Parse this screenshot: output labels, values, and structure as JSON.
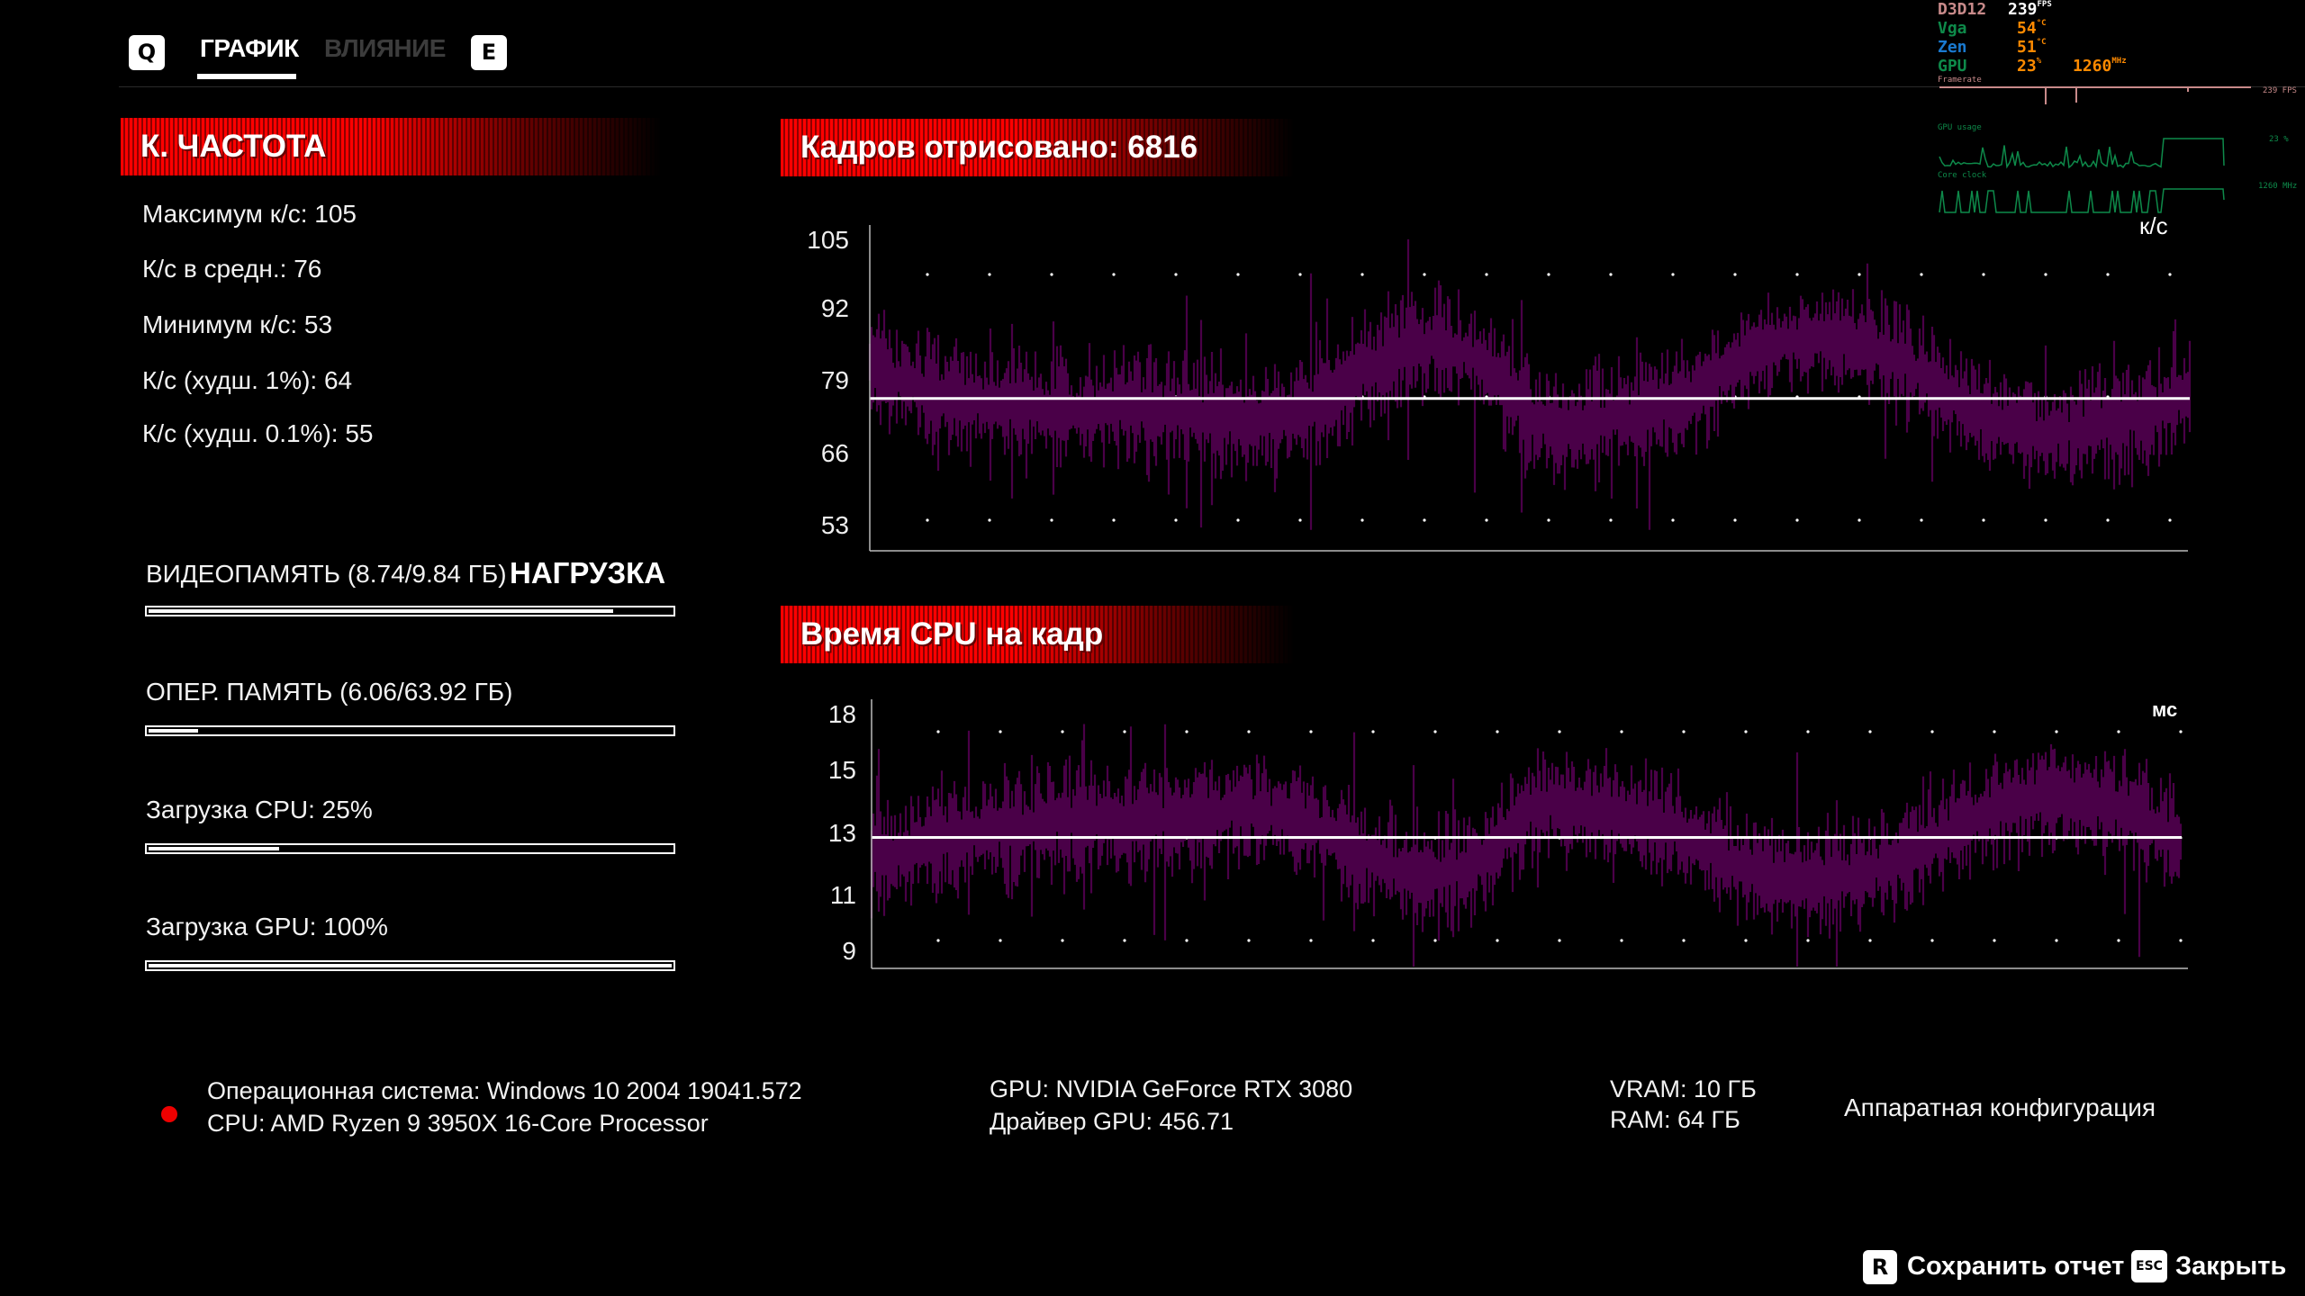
{
  "tabs": {
    "prev_key": "Q",
    "next_key": "E",
    "items": [
      {
        "label": "ГРАФИК",
        "active": true
      },
      {
        "label": "ВЛИЯНИЕ",
        "active": false
      }
    ]
  },
  "fps_panel": {
    "title": "К. ЧАСТОТА",
    "stats": [
      "Максимум к/с: 105",
      "К/с в средн.: 76",
      "Минимум к/с: 53",
      "К/с (худш. 1%): 64",
      "К/с (худш. 0.1%): 55"
    ]
  },
  "load": {
    "title": "НАГРУЗКА",
    "bars": [
      {
        "label": "ВИДЕОПАМЯТЬ (8.74/9.84 ГБ)",
        "value": 0.888
      },
      {
        "label": "ОПЕР. ПАМЯТЬ (6.06/63.92 ГБ)",
        "value": 0.095
      },
      {
        "label": "Загрузка CPU: 25%",
        "value": 0.25
      },
      {
        "label": "Загрузка GPU: 100%",
        "value": 1.0
      }
    ]
  },
  "chart_data": [
    {
      "type": "bar",
      "title": "Кадров отрисовано: 6816",
      "ylabel": "к/с",
      "yticks": [
        105,
        92,
        79,
        66,
        53
      ],
      "ylim": [
        50,
        108
      ],
      "mean": 76,
      "frames": 6816,
      "trend": [
        81,
        79,
        77,
        76,
        75,
        75,
        74,
        74,
        75,
        74,
        74,
        73,
        72,
        73,
        74,
        78,
        82,
        85,
        86,
        84,
        80,
        72,
        71,
        72,
        73,
        74,
        76,
        80,
        84,
        86,
        87,
        86,
        85,
        82,
        78,
        74,
        72,
        70,
        70,
        71,
        72,
        74,
        78
      ],
      "spread": 7,
      "color": "#4a0048"
    },
    {
      "type": "bar",
      "title": "Время CPU на кадр",
      "ylabel": "мс",
      "yticks": [
        18,
        15,
        13,
        11,
        9
      ],
      "ylim": [
        8.3,
        18.5
      ],
      "mean": 12.9,
      "trend": [
        12.2,
        12.4,
        12.8,
        13.0,
        13.2,
        13.2,
        13.4,
        13.4,
        13.3,
        13.4,
        13.4,
        13.6,
        13.8,
        13.6,
        13.4,
        12.8,
        12.2,
        11.8,
        11.6,
        11.9,
        12.4,
        13.8,
        14.0,
        13.8,
        13.6,
        13.4,
        13.0,
        12.4,
        11.9,
        11.6,
        11.5,
        11.6,
        11.8,
        12.2,
        12.8,
        13.4,
        13.8,
        14.2,
        14.3,
        14.1,
        13.8,
        13.4,
        12.7
      ],
      "spread": 1.3,
      "color": "#4a0048"
    }
  ],
  "system": {
    "os": "Операционная система: Windows 10 2004 19041.572",
    "cpu": "CPU: AMD Ryzen 9 3950X 16-Core Processor",
    "gpu": "GPU: NVIDIA GeForce RTX 3080",
    "driver": "Драйвер GPU: 456.71",
    "vram": "VRAM: 10 ГБ",
    "ram": "RAM: 64 ГБ",
    "hw_config": "Аппаратная конфигурация"
  },
  "footer": {
    "save_key": "R",
    "save_label": "Сохранить отчет",
    "close_key": "ESC",
    "close_label": "Закрыть"
  },
  "osd": {
    "api": "D3D12",
    "fps": "239",
    "fps_unit": "FPS",
    "vga_label": "Vga",
    "vga_temp": "54",
    "zen_label": "Zen",
    "zen_temp": "51",
    "temp_unit": "°C",
    "gpu_label": "GPU",
    "gpu_usage": "23",
    "gpu_usage_unit": "%",
    "gpu_clock": "1260",
    "clock_unit": "MHz",
    "framerate_label": "Framerate",
    "framerate_value": "239 FPS",
    "gpu_usage_label": "GPU usage",
    "gpu_usage_value": "23 %",
    "core_clock_label": "Core clock",
    "core_clock_value": "1260 MHz",
    "colors": {
      "api": "#c88a8a",
      "vga": "#0e8a4a",
      "zen": "#1a7ad0",
      "value": "#ff8a00",
      "graph": "#0e8a4a"
    }
  }
}
